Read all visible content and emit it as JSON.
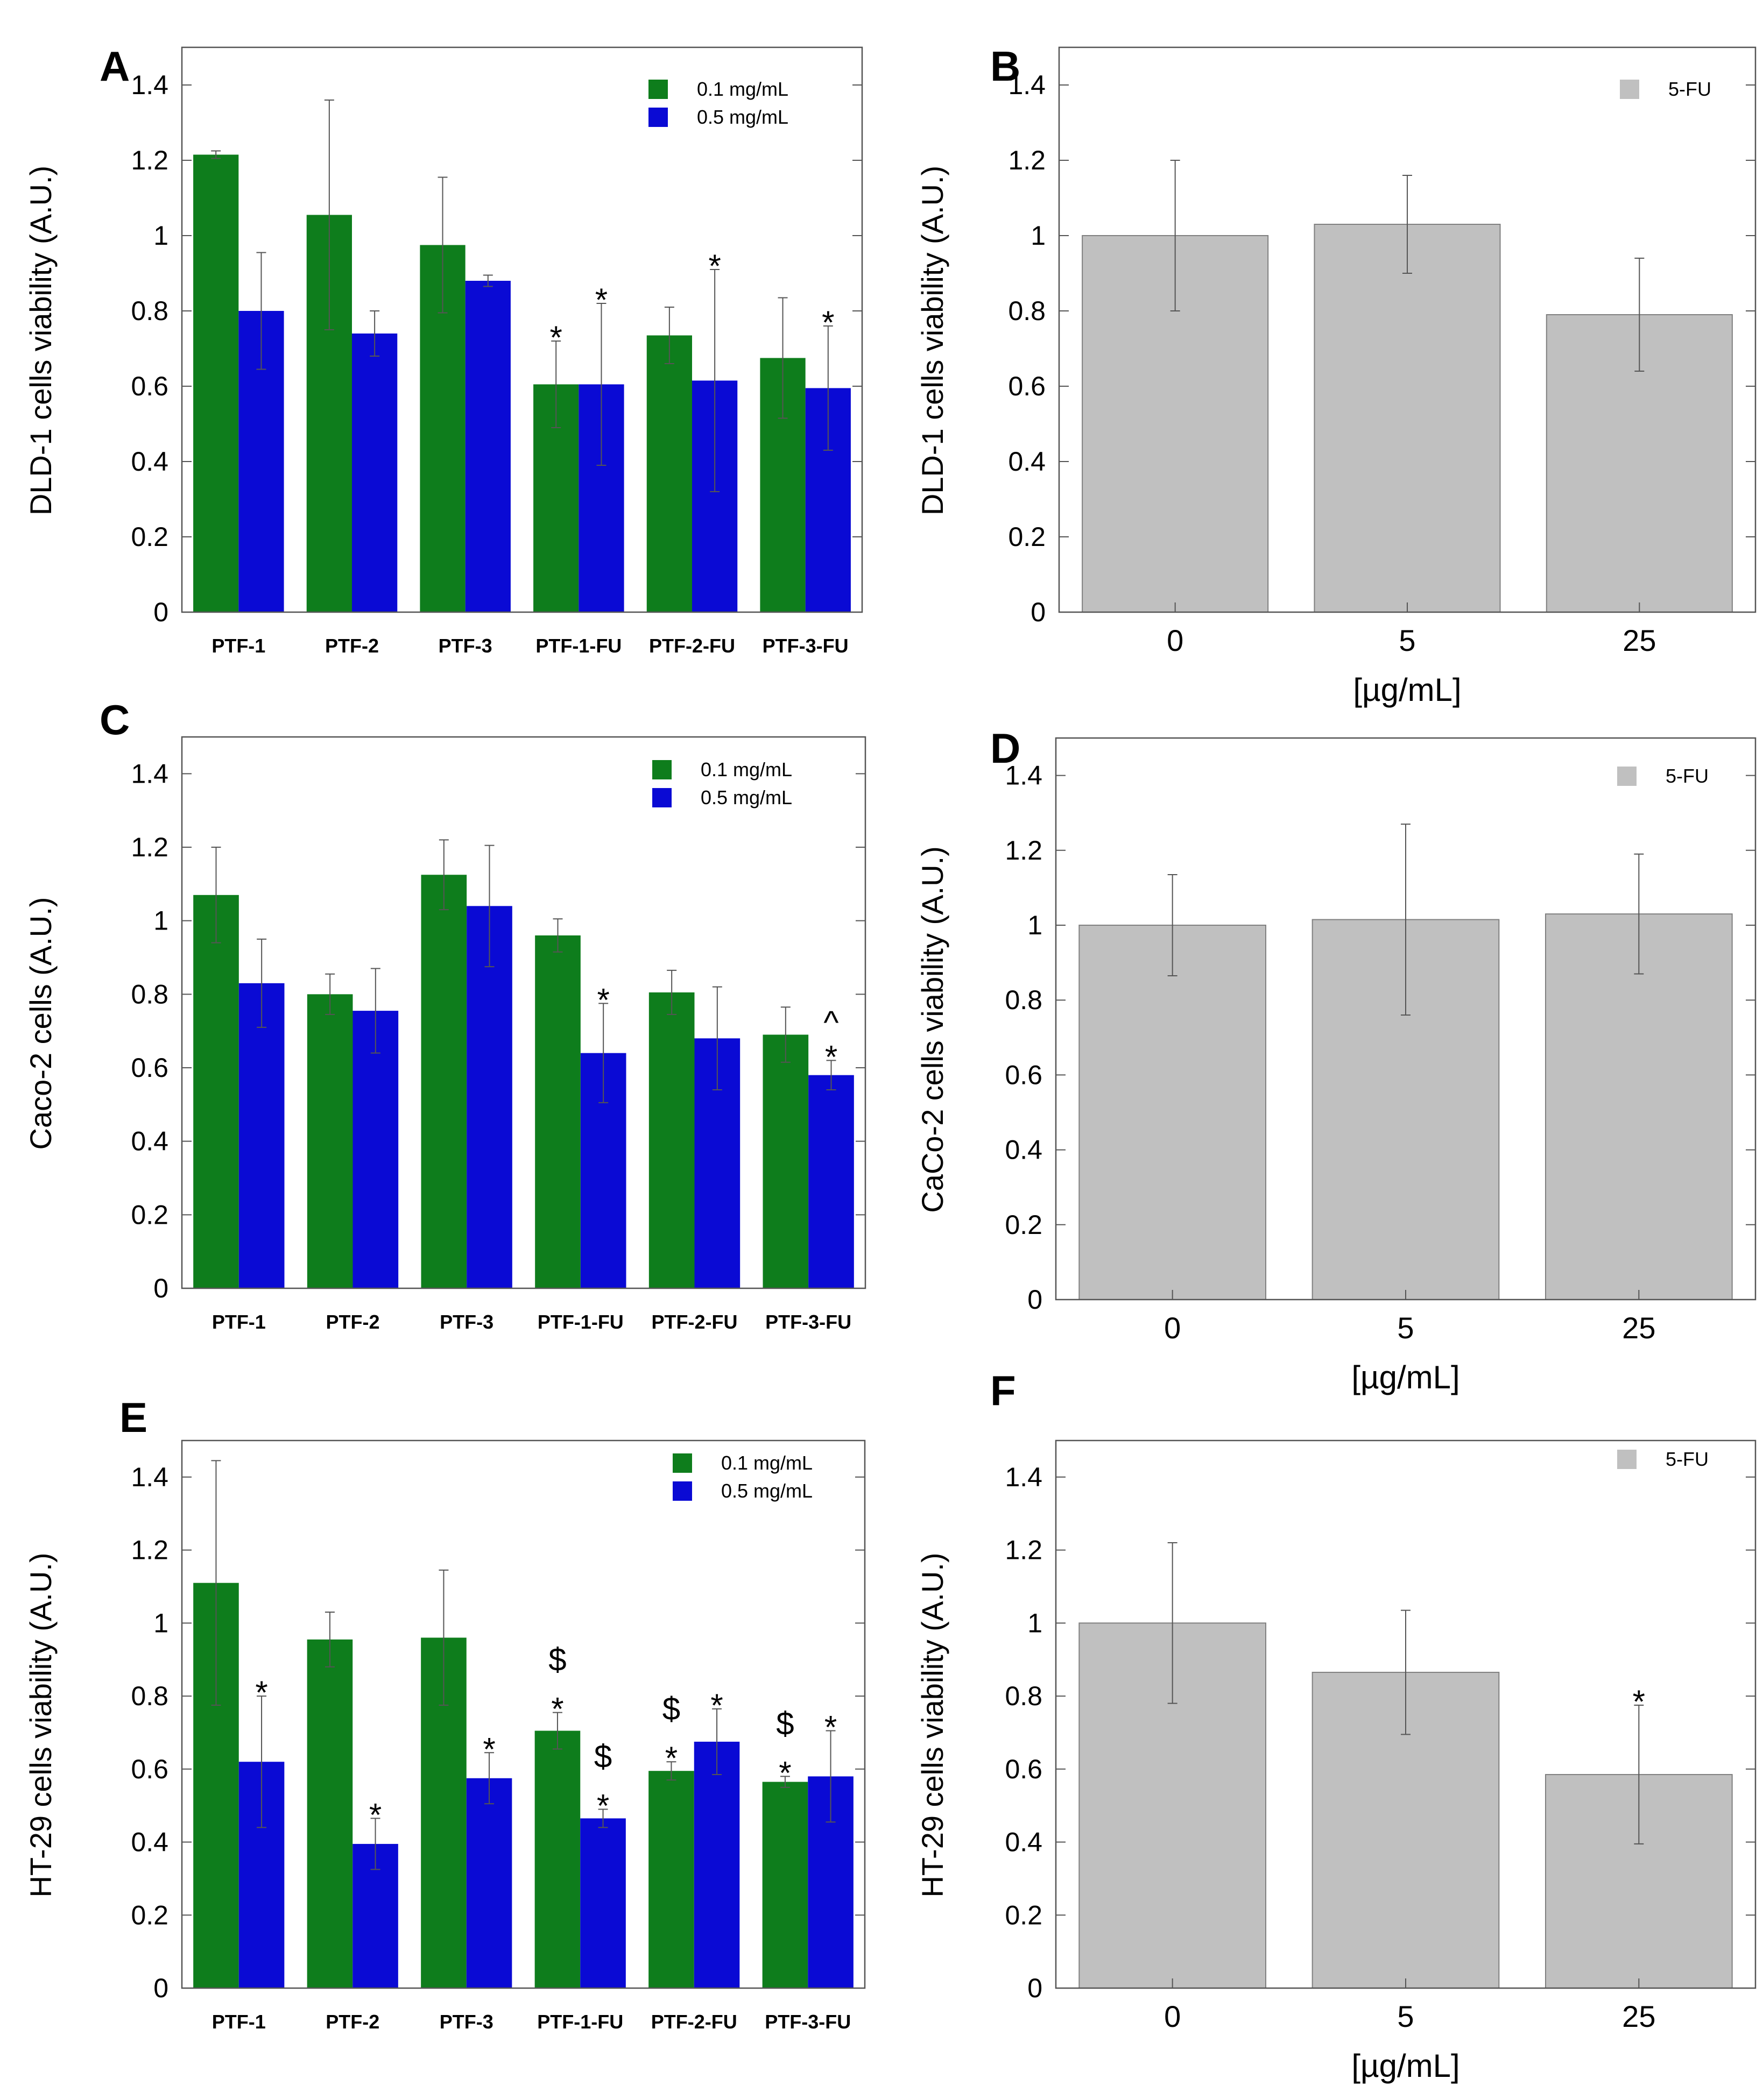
{
  "colors": {
    "dose1": "#0e7d1c",
    "dose2": "#0a0ad4",
    "control": "#c0c0c0",
    "controlEdge": "#808080"
  },
  "chart_data": [
    {
      "id": "A",
      "letter": "A",
      "type": "bar",
      "ylabel": "DLD-1 cells viability (A.U.)",
      "xlabel": "",
      "ylim": [
        0,
        1.5
      ],
      "yticks": [
        "0",
        "0.2",
        "0.4",
        "0.6",
        "0.8",
        "1",
        "1.2",
        "1.4"
      ],
      "categories": [
        "PTF-1",
        "PTF-2",
        "PTF-3",
        "PTF-1-FU",
        "PTF-2-FU",
        "PTF-3-FU"
      ],
      "legend_position": "top-right",
      "series": [
        {
          "name": "0.1 mg/mL",
          "color_key": "dose1",
          "values": [
            1.215,
            1.055,
            0.975,
            0.605,
            0.735,
            0.675
          ],
          "errors": [
            0.01,
            0.305,
            0.18,
            0.115,
            0.075,
            0.16
          ],
          "annotations": [
            [],
            [],
            [],
            [
              "*"
            ],
            [],
            []
          ]
        },
        {
          "name": "0.5 mg/mL",
          "color_key": "dose2",
          "values": [
            0.8,
            0.74,
            0.88,
            0.605,
            0.615,
            0.595
          ],
          "errors": [
            0.155,
            0.06,
            0.015,
            0.215,
            0.295,
            0.165
          ],
          "annotations": [
            [],
            [],
            [],
            [
              "*"
            ],
            [
              "*"
            ],
            [
              "*"
            ]
          ]
        }
      ]
    },
    {
      "id": "B",
      "letter": "B",
      "type": "bar",
      "ylabel": "DLD-1 cells viability (A.U.)",
      "xlabel": "[µg/mL]",
      "ylim": [
        0,
        1.5
      ],
      "yticks": [
        "0",
        "0.2",
        "0.4",
        "0.6",
        "0.8",
        "1",
        "1.2",
        "1.4"
      ],
      "categories": [
        "0",
        "5",
        "25"
      ],
      "legend_position": "top-right",
      "series": [
        {
          "name": "5-FU",
          "color_key": "control",
          "values": [
            1.0,
            1.03,
            0.79
          ],
          "errors": [
            0.2,
            0.13,
            0.15
          ],
          "annotations": [
            [],
            [],
            []
          ]
        }
      ]
    },
    {
      "id": "C",
      "letter": "C",
      "type": "bar",
      "ylabel": "Caco-2 cells (A.U.)",
      "xlabel": "",
      "ylim": [
        0,
        1.5
      ],
      "yticks": [
        "0",
        "0.2",
        "0.4",
        "0.6",
        "0.8",
        "1",
        "1.2",
        "1.4"
      ],
      "categories": [
        "PTF-1",
        "PTF-2",
        "PTF-3",
        "PTF-1-FU",
        "PTF-2-FU",
        "PTF-3-FU"
      ],
      "legend_position": "top-right",
      "series": [
        {
          "name": "0.1 mg/mL",
          "color_key": "dose1",
          "values": [
            1.07,
            0.8,
            1.125,
            0.96,
            0.805,
            0.69
          ],
          "errors": [
            0.13,
            0.055,
            0.095,
            0.045,
            0.06,
            0.075
          ],
          "annotations": [
            [],
            [],
            [],
            [],
            [],
            []
          ]
        },
        {
          "name": "0.5 mg/mL",
          "color_key": "dose2",
          "values": [
            0.83,
            0.755,
            1.04,
            0.64,
            0.68,
            0.58
          ],
          "errors": [
            0.12,
            0.115,
            0.165,
            0.135,
            0.14,
            0.04
          ],
          "annotations": [
            [],
            [],
            [],
            [
              "*"
            ],
            [],
            [
              "*",
              "^"
            ]
          ]
        }
      ]
    },
    {
      "id": "D",
      "letter": "D",
      "type": "bar",
      "ylabel": "CaCo-2 cells viability (A.U.)",
      "xlabel": "[µg/mL]",
      "ylim": [
        0,
        1.5
      ],
      "yticks": [
        "0",
        "0.2",
        "0.4",
        "0.6",
        "0.8",
        "1",
        "1.2",
        "1.4"
      ],
      "categories": [
        "0",
        "5",
        "25"
      ],
      "legend_position": "top-right",
      "series": [
        {
          "name": "5-FU",
          "color_key": "control",
          "values": [
            1.0,
            1.015,
            1.03
          ],
          "errors": [
            0.135,
            0.255,
            0.16
          ],
          "annotations": [
            [],
            [],
            []
          ]
        }
      ]
    },
    {
      "id": "E",
      "letter": "E",
      "type": "bar",
      "ylabel": "HT-29 cells viability (A.U.)",
      "xlabel": "",
      "ylim": [
        0,
        1.5
      ],
      "yticks": [
        "0",
        "0.2",
        "0.4",
        "0.6",
        "0.8",
        "1",
        "1.2",
        "1.4"
      ],
      "categories": [
        "PTF-1",
        "PTF-2",
        "PTF-3",
        "PTF-1-FU",
        "PTF-2-FU",
        "PTF-3-FU"
      ],
      "legend_position": "top-right",
      "series": [
        {
          "name": "0.1 mg/mL",
          "color_key": "dose1",
          "values": [
            1.11,
            0.955,
            0.96,
            0.705,
            0.595,
            0.565
          ],
          "errors": [
            0.335,
            0.075,
            0.185,
            0.05,
            0.025,
            0.015
          ],
          "annotations": [
            [],
            [],
            [],
            [
              "*",
              "$"
            ],
            [
              "*",
              "$"
            ],
            [
              "*",
              "$"
            ]
          ]
        },
        {
          "name": "0.5 mg/mL",
          "color_key": "dose2",
          "values": [
            0.62,
            0.395,
            0.575,
            0.465,
            0.675,
            0.58
          ],
          "errors": [
            0.18,
            0.07,
            0.07,
            0.025,
            0.09,
            0.125
          ],
          "annotations": [
            [
              "*"
            ],
            [
              "*"
            ],
            [
              "*"
            ],
            [
              "*",
              "$"
            ],
            [
              "*"
            ],
            [
              "*"
            ]
          ]
        }
      ]
    },
    {
      "id": "F",
      "letter": "F",
      "type": "bar",
      "ylabel": "HT-29 cells viability (A.U.)",
      "xlabel": "[µg/mL]",
      "ylim": [
        0,
        1.5
      ],
      "yticks": [
        "0",
        "0.2",
        "0.4",
        "0.6",
        "0.8",
        "1",
        "1.2",
        "1.4"
      ],
      "categories": [
        "0",
        "5",
        "25"
      ],
      "legend_position": "top-right",
      "series": [
        {
          "name": "5-FU",
          "color_key": "control",
          "values": [
            1.0,
            0.865,
            0.585
          ],
          "errors": [
            0.22,
            0.17,
            0.19
          ],
          "annotations": [
            [],
            [],
            [
              "*"
            ]
          ]
        }
      ]
    }
  ]
}
